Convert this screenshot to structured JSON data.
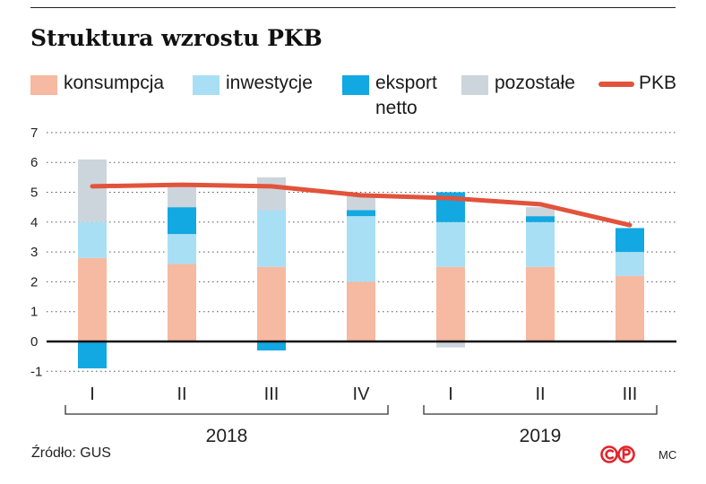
{
  "title": "Struktura wzrostu PKB",
  "source": "Źródło: GUS",
  "author_initials": "MC",
  "logo_text": "©P",
  "colors": {
    "konsumpcja": "#f6b9a1",
    "inwestycje": "#a8dff5",
    "eksport_netto": "#12a8e2",
    "pozostale": "#cdd5dc",
    "pkb": "#e2533c",
    "logo": "#e3242b"
  },
  "chart_data": {
    "type": "bar",
    "stacked": true,
    "title": "Struktura wzrostu PKB",
    "categories": [
      "I",
      "II",
      "III",
      "IV",
      "I",
      "II",
      "III"
    ],
    "groups": [
      {
        "label": "2018",
        "categories": [
          "I",
          "II",
          "III",
          "IV"
        ]
      },
      {
        "label": "2019",
        "categories": [
          "I",
          "II",
          "III"
        ]
      }
    ],
    "ylim": [
      -1,
      7
    ],
    "yticks": [
      "-1",
      "0",
      "1",
      "2",
      "3",
      "4",
      "5",
      "6",
      "7"
    ],
    "grid": "dotted horizontal",
    "legend_position": "top",
    "series": [
      {
        "key": "konsumpcja",
        "name": "konsumpcja",
        "values": [
          2.8,
          2.6,
          2.5,
          2.0,
          2.5,
          2.5,
          2.2
        ]
      },
      {
        "key": "inwestycje",
        "name": "inwestycje",
        "values": [
          1.2,
          1.0,
          1.9,
          2.2,
          1.5,
          1.5,
          0.8
        ]
      },
      {
        "key": "eksport_netto",
        "name": "eksport netto",
        "values": [
          -0.9,
          0.9,
          -0.3,
          0.2,
          1.0,
          0.2,
          0.8
        ]
      },
      {
        "key": "pozostale",
        "name": "pozostałe",
        "values": [
          2.1,
          0.7,
          1.1,
          0.5,
          -0.2,
          0.3,
          0.0
        ]
      }
    ],
    "line": {
      "name": "PKB",
      "values": [
        5.2,
        5.25,
        5.2,
        4.9,
        4.8,
        4.6,
        3.9
      ]
    }
  }
}
